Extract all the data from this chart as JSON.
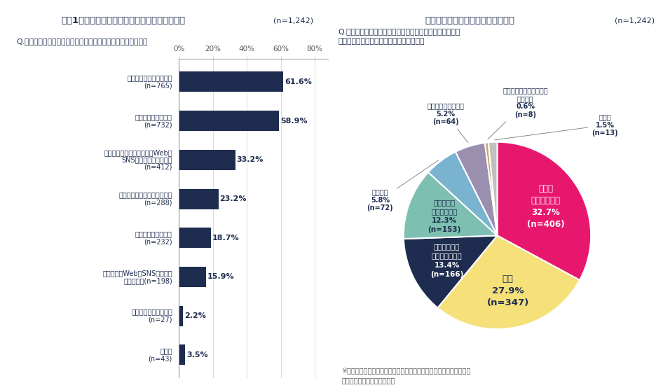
{
  "left_title": "直近1年間で仕事獲得に繋がったことのあるもの",
  "left_n": "(n=1,242)",
  "left_question": "Q.仕事はどのようなところから見つけますか。　（複数回答）",
  "right_title": "最も収入が得られる仕事の獲得経路",
  "right_n": "(n=1,242)",
  "right_question": "Q.その中で、最も収入が得られる仕事はどのようなところ\nから見つけたものですか。　（単一回答）",
  "right_note": "※エージェントサービスは、コーディネーターによる仲介支援を伴う\n　マッチングサービスを指す",
  "bar_labels_line1": [
    "人脈（知人の紹介含む）",
    "過去・現在の取引先",
    "自分自身の広告宣伝活動（Web・",
    "エージェントサービスの利用",
    "クラウドソーシング",
    "求人広告（Web・SNS・新聞・",
    "シェアリングサービス",
    "その他"
  ],
  "bar_labels_line2": [
    "(n=765)",
    "(n=732)",
    "SNS・新聞・雑誌など）",
    "(n=288)",
    "(n=232)",
    "雑誌など）(n=198)",
    "(n=27)",
    "(n=43)"
  ],
  "bar_labels_line3": [
    "",
    "",
    "(n=412)",
    "",
    "",
    "",
    "",
    ""
  ],
  "bar_values": [
    61.6,
    58.9,
    33.2,
    23.2,
    18.7,
    15.9,
    2.2,
    3.5
  ],
  "bar_color": "#1e2d4f",
  "bar_label_values": [
    "61.6%",
    "58.9%",
    "33.2%",
    "23.2%",
    "18.7%",
    "15.9%",
    "2.2%",
    "3.5%"
  ],
  "pie_values": [
    32.7,
    27.9,
    13.4,
    12.3,
    5.8,
    5.2,
    0.6,
    1.5
  ],
  "pie_colors": [
    "#e8176e",
    "#f5e07a",
    "#1e2d4f",
    "#7dbfb0",
    "#7ab3d0",
    "#9b8fb0",
    "#c4a86a",
    "#c0c0c0"
  ],
  "header_bg": "#c8d4e8",
  "header_text_color": "#1e2d4f",
  "bg_color": "#ffffff"
}
